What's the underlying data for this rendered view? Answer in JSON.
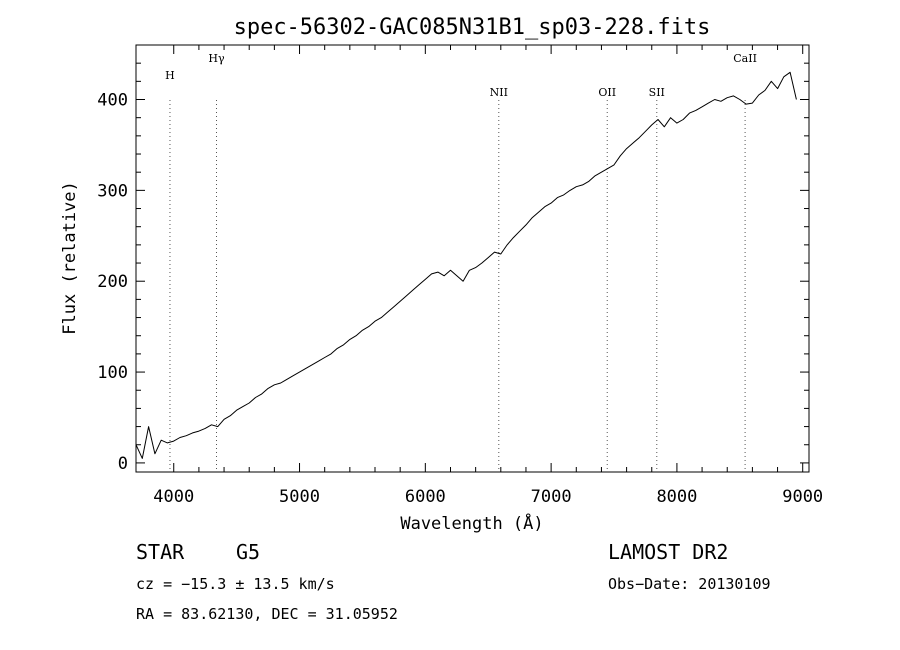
{
  "chart_data": {
    "type": "line",
    "title": "spec-56302-GAC085N31B1_sp03-228.fits",
    "xlabel": "Wavelength (Å)",
    "ylabel": "Flux (relative)",
    "xlim": [
      3700,
      9050
    ],
    "ylim": [
      -10,
      460
    ],
    "xticks": [
      4000,
      5000,
      6000,
      7000,
      8000,
      9000
    ],
    "yticks": [
      0,
      100,
      200,
      300,
      400
    ],
    "grid": false,
    "series": [
      {
        "x": [
          3700,
          3750,
          3800,
          3850,
          3900,
          3950,
          4000,
          4050,
          4100,
          4150,
          4200,
          4250,
          4300,
          4350,
          4400,
          4450,
          4500,
          4550,
          4600,
          4650,
          4700,
          4750,
          4800,
          4850,
          4900,
          4950,
          5000,
          5050,
          5100,
          5150,
          5200,
          5250,
          5300,
          5350,
          5400,
          5450,
          5500,
          5550,
          5600,
          5650,
          5700,
          5750,
          5800,
          5850,
          5900,
          5950,
          6000,
          6050,
          6100,
          6150,
          6200,
          6250,
          6300,
          6350,
          6400,
          6450,
          6500,
          6550,
          6600,
          6650,
          6700,
          6750,
          6800,
          6850,
          6900,
          6950,
          7000,
          7050,
          7100,
          7150,
          7200,
          7250,
          7300,
          7350,
          7400,
          7450,
          7500,
          7550,
          7600,
          7650,
          7700,
          7750,
          7800,
          7850,
          7900,
          7950,
          8000,
          8050,
          8100,
          8150,
          8200,
          8250,
          8300,
          8350,
          8400,
          8450,
          8500,
          8550,
          8600,
          8650,
          8700,
          8750,
          8800,
          8850,
          8900,
          8950
        ],
        "y": [
          20,
          5,
          40,
          10,
          25,
          22,
          24,
          28,
          30,
          33,
          35,
          38,
          42,
          40,
          48,
          52,
          58,
          62,
          66,
          72,
          76,
          82,
          86,
          88,
          92,
          96,
          100,
          104,
          108,
          112,
          116,
          120,
          126,
          130,
          136,
          140,
          146,
          150,
          156,
          160,
          166,
          172,
          178,
          184,
          190,
          196,
          202,
          208,
          210,
          206,
          212,
          206,
          200,
          212,
          215,
          220,
          226,
          232,
          230,
          240,
          248,
          255,
          262,
          270,
          276,
          282,
          286,
          292,
          295,
          300,
          304,
          306,
          310,
          316,
          320,
          324,
          328,
          338,
          346,
          352,
          358,
          365,
          372,
          378,
          370,
          380,
          374,
          378,
          385,
          388,
          392,
          396,
          400,
          398,
          402,
          404,
          400,
          395,
          396,
          405,
          410,
          420,
          412,
          425,
          430,
          400
        ]
      }
    ],
    "lines": [
      {
        "label": "H",
        "x": 3970
      },
      {
        "label": "Hγ",
        "x": 4340
      },
      {
        "label": "NII",
        "x": 6584
      },
      {
        "label": "OII",
        "x": 7446
      },
      {
        "label": "SII",
        "x": 7840
      },
      {
        "label": "CaII",
        "x": 8542
      }
    ]
  },
  "info": {
    "class_label": "STAR",
    "subclass": "G5",
    "survey": "LAMOST DR2",
    "cz": "cz = −15.3 ± 13.5 km/s",
    "obs_date": "Obs−Date: 20130109",
    "radec": "RA =  83.62130, DEC =  31.05952"
  }
}
